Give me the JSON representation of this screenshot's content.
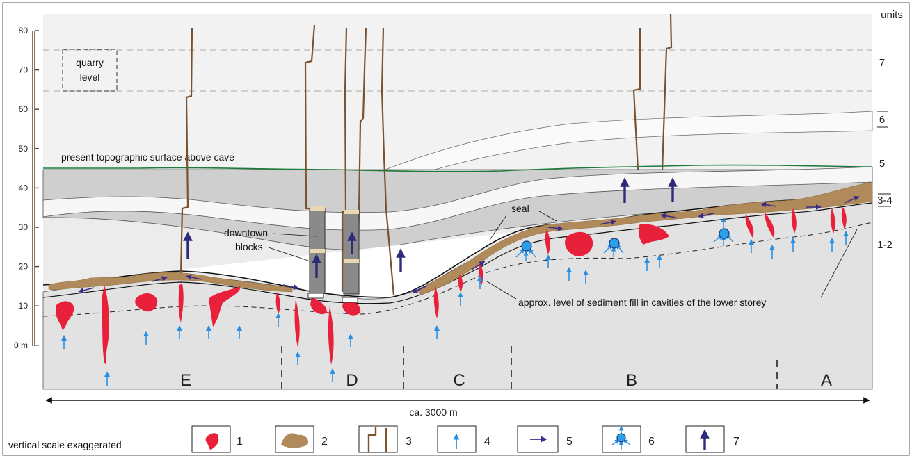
{
  "y_axis": {
    "ticks": [
      "80",
      "70",
      "60",
      "50",
      "40",
      "30",
      "20",
      "10",
      "0 m"
    ]
  },
  "units_header": "units",
  "units": [
    "7",
    "6",
    "5",
    "3-4",
    "1-2"
  ],
  "quarry": {
    "line1": "quarry",
    "line2": "level"
  },
  "surface_label": "present topographic  surface above cave",
  "annotations": {
    "seal": "seal",
    "downtown_line1": "downtown",
    "downtown_line2": "blocks",
    "sediment": "approx. level of sediment fill in cavities of the lower storey"
  },
  "zones": [
    "E",
    "D",
    "C",
    "B",
    "A"
  ],
  "distance": "ca. 3000 m",
  "footnote": "vertical scale exaggerated",
  "legend": [
    "1",
    "2",
    "3",
    "4",
    "5",
    "6",
    "7"
  ],
  "colors": {
    "cavity_red": "#e8203a",
    "sediment_brown": "#b08a5a",
    "fracture_brown": "#7a5230",
    "blue_arrow": "#2a8fe0",
    "purple_arrow": "#3a2a8a",
    "surface_green": "#1e7a3a"
  }
}
